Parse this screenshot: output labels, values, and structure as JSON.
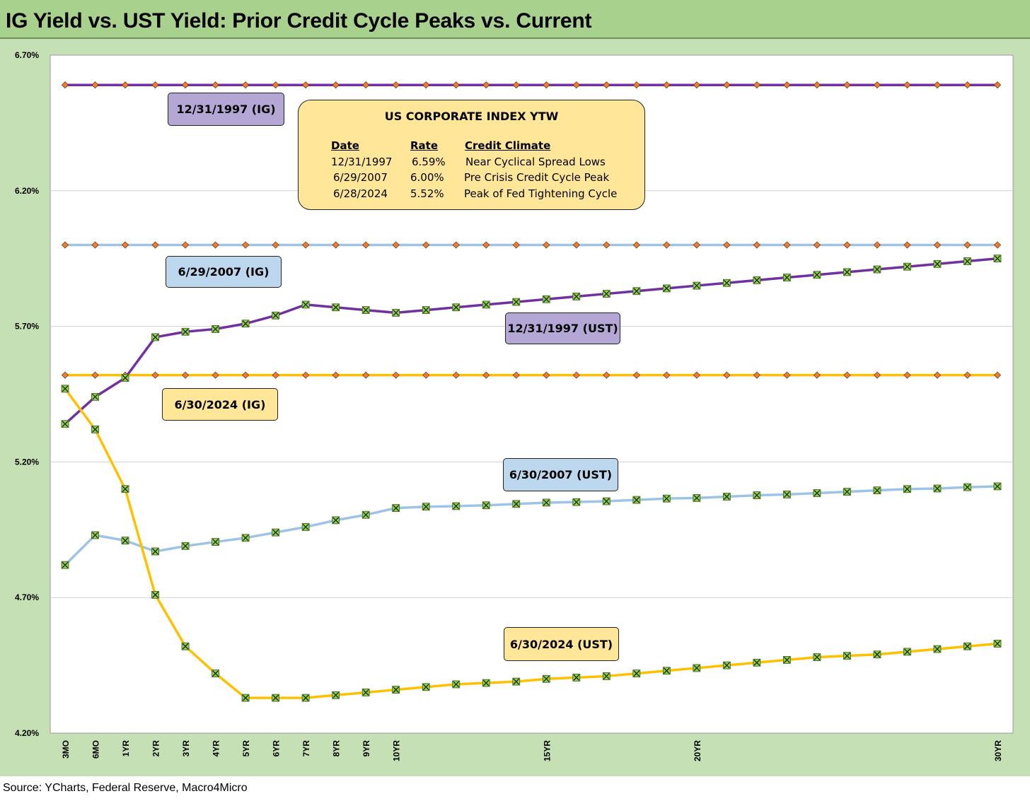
{
  "title": "IG Yield vs. UST Yield: Prior Credit Cycle Peaks vs. Current",
  "source": "Source: YCharts, Federal Reserve, Macro4Micro",
  "legend_box": {
    "title": "US CORPORATE INDEX YTW",
    "headers": [
      "Date",
      "Rate",
      "Credit Climate"
    ],
    "rows": [
      [
        "12/31/1997",
        "6.59%",
        "Near Cyclical Spread Lows"
      ],
      [
        "6/29/2007",
        "6.00%",
        "Pre Crisis Credit Cycle Peak"
      ],
      [
        "6/28/2024",
        "5.52%",
        "Peak of Fed Tightening Cycle"
      ]
    ]
  },
  "series_labels": {
    "ig_1997": "12/31/1997 (IG)",
    "ig_2007": "6/29/2007 (IG)",
    "ig_2024": "6/30/2024 (IG)",
    "ust_1997": "12/31/1997 (UST)",
    "ust_2007": "6/30/2007 (UST)",
    "ust_2024": "6/30/2024 (UST)"
  },
  "colors": {
    "y1997": "#7030a0",
    "y2007": "#9dc3e6",
    "y2024": "#ffc000",
    "ig_marker": "#ed7d31",
    "ust_marker": "#92d050",
    "label_1997": "#b4a7d6",
    "label_2007": "#bdd7ee",
    "label_2024": "#ffe699",
    "plot_bg": "#ffffff",
    "frame_bg": "#c5e0b4",
    "title_bg": "#a9d18e"
  },
  "chart_data": {
    "type": "line",
    "x": [
      "3MO",
      "6MO",
      "1YR",
      "2YR",
      "3YR",
      "4YR",
      "5YR",
      "6YR",
      "7YR",
      "8YR",
      "9YR",
      "10YR",
      "11YR",
      "12YR",
      "13YR",
      "14YR",
      "15YR",
      "16YR",
      "17YR",
      "18YR",
      "19YR",
      "20YR",
      "21YR",
      "22YR",
      "23YR",
      "24YR",
      "25YR",
      "26YR",
      "27YR",
      "28YR",
      "29YR",
      "30YR"
    ],
    "x_tick_labels": [
      "3MO",
      "6MO",
      "1YR",
      "2YR",
      "3YR",
      "4YR",
      "5YR",
      "6YR",
      "7YR",
      "8YR",
      "9YR",
      "10YR",
      "",
      "",
      "",
      "",
      "15YR",
      "",
      "",
      "",
      "",
      "20YR",
      "",
      "",
      "",
      "",
      "",
      "",
      "",
      "",
      "",
      "30YR"
    ],
    "y_ticks": [
      "4.20%",
      "4.70%",
      "5.20%",
      "5.70%",
      "6.20%",
      "6.70%"
    ],
    "ylim": [
      4.2,
      6.7
    ],
    "grid": true,
    "series": [
      {
        "name": "12/31/1997 (IG)",
        "kind": "IG",
        "year": "1997",
        "constant": 6.59
      },
      {
        "name": "6/29/2007 (IG)",
        "kind": "IG",
        "year": "2007",
        "constant": 6.0
      },
      {
        "name": "6/30/2024 (IG)",
        "kind": "IG",
        "year": "2024",
        "constant": 5.52
      },
      {
        "name": "12/31/1997 (UST)",
        "kind": "UST",
        "year": "1997",
        "values": [
          5.34,
          5.44,
          5.51,
          5.66,
          5.68,
          5.69,
          5.71,
          5.74,
          5.78,
          5.77,
          5.76,
          5.75,
          5.76,
          5.77,
          5.78,
          5.79,
          5.8,
          5.81,
          5.82,
          5.83,
          5.84,
          5.85,
          5.86,
          5.87,
          5.88,
          5.89,
          5.9,
          5.91,
          5.92,
          5.93,
          5.94,
          5.95
        ]
      },
      {
        "name": "6/30/2007 (UST)",
        "kind": "UST",
        "year": "2007",
        "values": [
          4.82,
          4.93,
          4.91,
          4.87,
          4.89,
          4.905,
          4.92,
          4.94,
          4.96,
          4.985,
          5.005,
          5.03,
          5.035,
          5.037,
          5.04,
          5.045,
          5.05,
          5.052,
          5.055,
          5.06,
          5.065,
          5.067,
          5.072,
          5.077,
          5.08,
          5.085,
          5.09,
          5.095,
          5.1,
          5.102,
          5.107,
          5.11
        ]
      },
      {
        "name": "6/30/2024 (UST)",
        "kind": "UST",
        "year": "2024",
        "values": [
          5.47,
          5.32,
          5.1,
          4.71,
          4.52,
          4.42,
          4.33,
          4.33,
          4.33,
          4.34,
          4.35,
          4.36,
          4.37,
          4.38,
          4.385,
          4.39,
          4.4,
          4.405,
          4.41,
          4.42,
          4.43,
          4.44,
          4.45,
          4.46,
          4.47,
          4.48,
          4.485,
          4.49,
          4.5,
          4.51,
          4.52,
          4.53
        ]
      }
    ]
  }
}
